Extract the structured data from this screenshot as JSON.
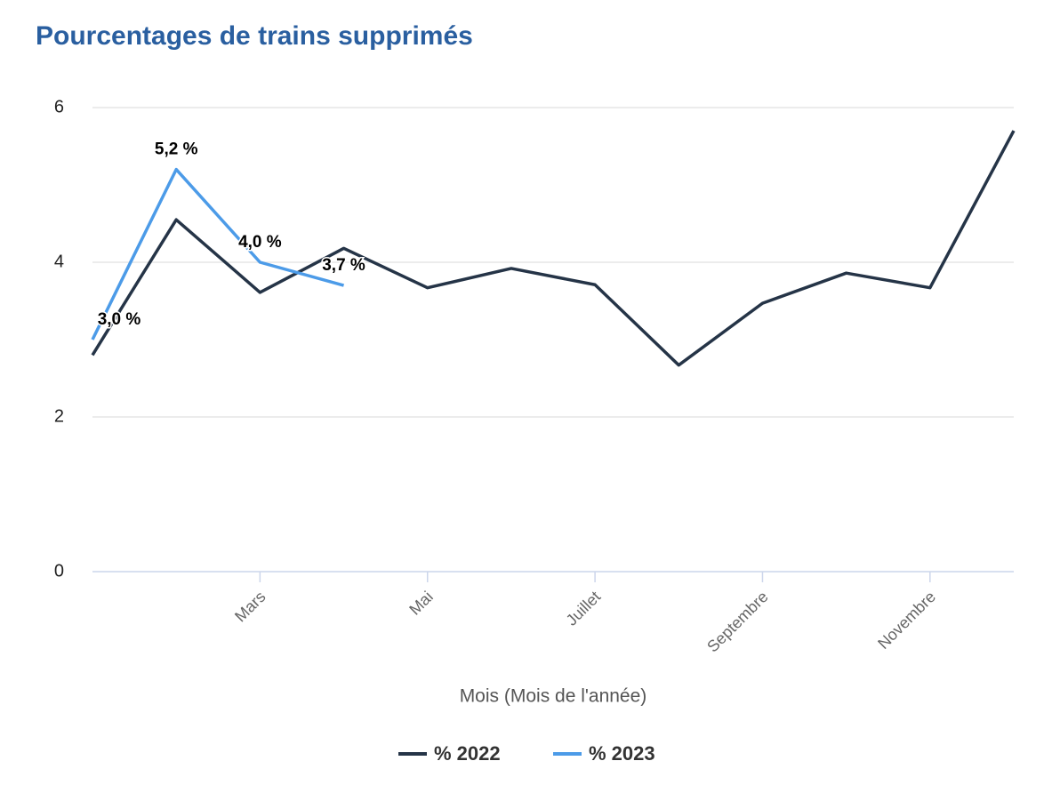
{
  "chart_data": {
    "type": "line",
    "title": "Pourcentages de trains supprimés",
    "x_label": "Mois (Mois de l'année)",
    "categories": [
      null,
      null,
      "Mars",
      null,
      "Mai",
      null,
      "Juillet",
      null,
      "Septembre",
      null,
      "Novembre",
      null
    ],
    "series": [
      {
        "name": "% 2022",
        "color": "#253447",
        "values": [
          2.8,
          4.55,
          3.61,
          4.18,
          3.67,
          3.92,
          3.71,
          2.67,
          3.47,
          3.86,
          3.67,
          5.7
        ]
      },
      {
        "name": "% 2023",
        "color": "#4c9be8",
        "values": [
          3.0,
          5.2,
          4.0,
          3.7,
          null,
          null,
          null,
          null,
          null,
          null,
          null,
          null
        ],
        "value_labels": [
          "3,0 %",
          "5,2 %",
          "4,0 %",
          "3,7 %",
          null,
          null,
          null,
          null,
          null,
          null,
          null,
          null
        ]
      }
    ],
    "ylim": [
      0,
      6
    ],
    "yticks": [
      0,
      2,
      4,
      6
    ],
    "grid": true,
    "legend": "bottom"
  }
}
